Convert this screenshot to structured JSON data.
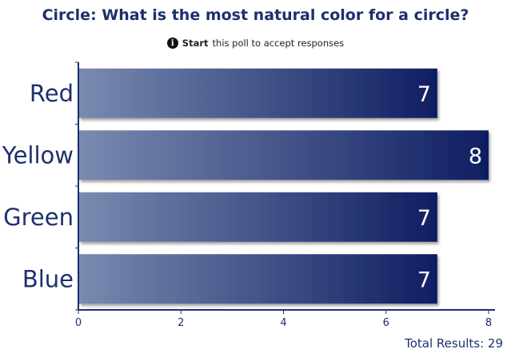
{
  "poll": {
    "title": "Circle: What is the most natural color for a circle?",
    "start_label": "Start",
    "accept_text": "this poll to accept responses",
    "info_icon": "info-icon",
    "total_label": "Total Results: 29"
  },
  "colors": {
    "bar_start": "#7a8ab0",
    "bar_end": "#0f1e62",
    "axis": "#1e2f6e",
    "text_dark": "#1e2f6e"
  },
  "chart_data": {
    "type": "bar",
    "orientation": "horizontal",
    "categories": [
      "Red",
      "Yellow",
      "Green",
      "Blue"
    ],
    "values": [
      7,
      8,
      7,
      7
    ],
    "data_labels": [
      "7",
      "8",
      "7",
      "7"
    ],
    "xlim": [
      0,
      8
    ],
    "xticks": [
      "0",
      "2",
      "4",
      "6",
      "8"
    ],
    "grid": false
  }
}
